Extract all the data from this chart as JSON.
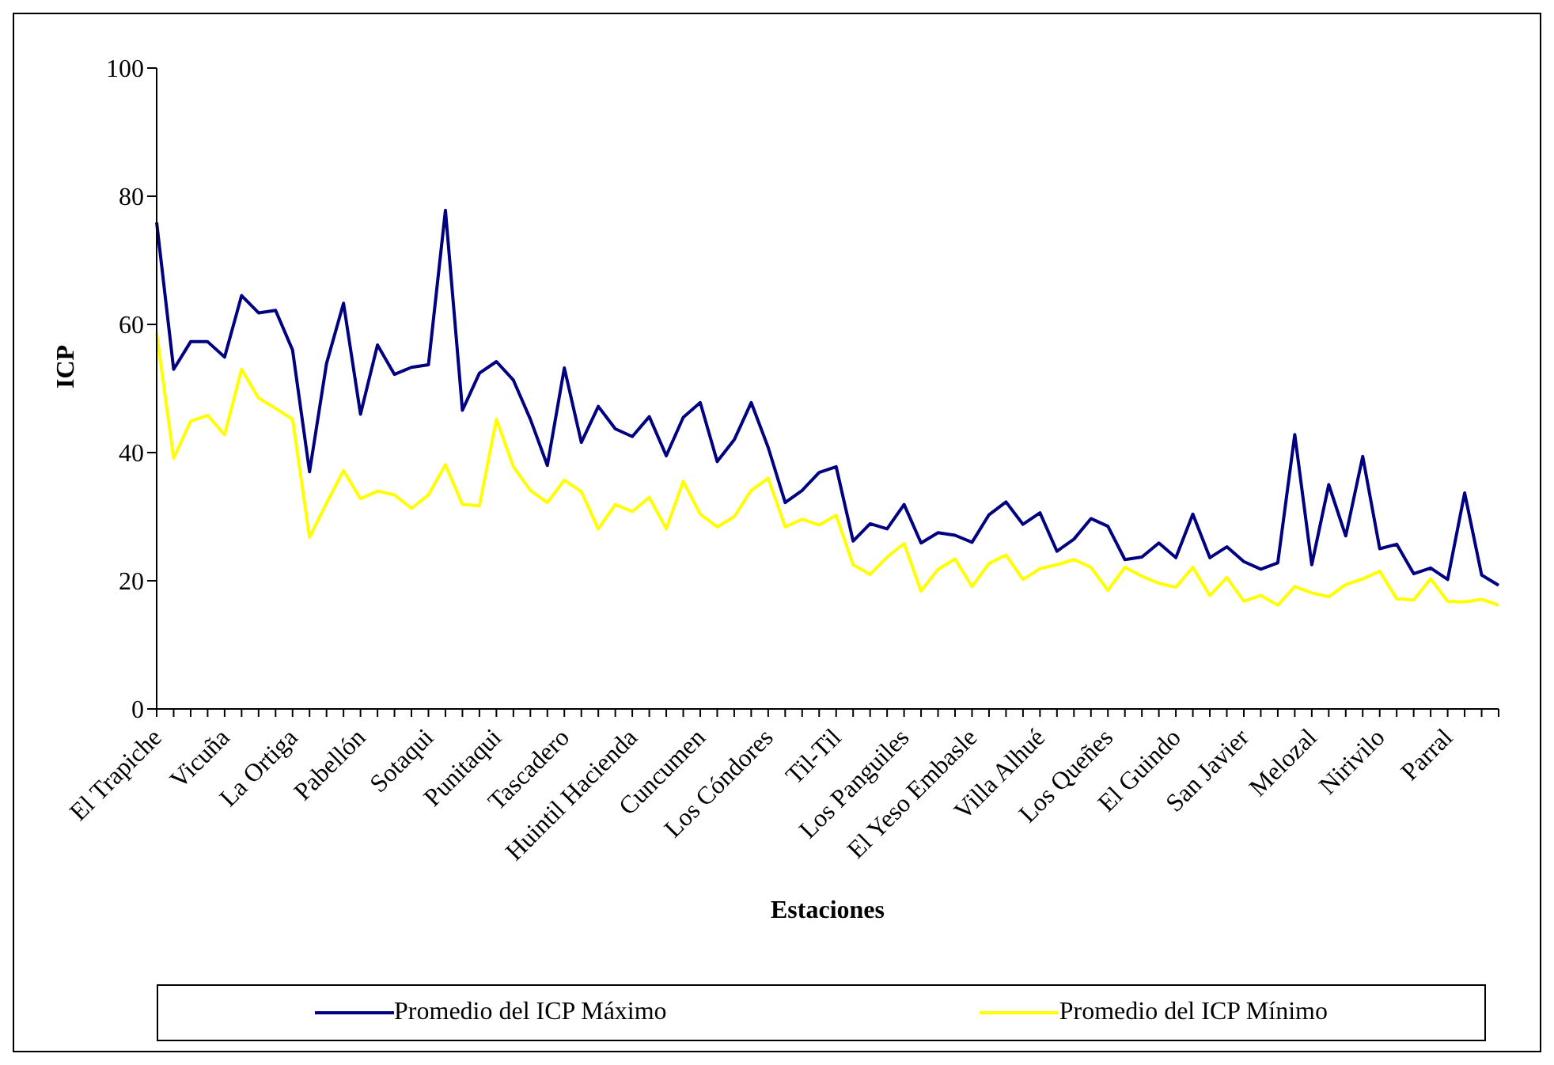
{
  "chart_data": {
    "type": "line",
    "xlabel": "Estaciones",
    "ylabel": "ICP",
    "categories": [
      "El Trapiche",
      null,
      null,
      null,
      "Vicuña",
      null,
      null,
      null,
      "La Ortiga",
      null,
      null,
      null,
      "Pabellón",
      null,
      null,
      null,
      "Sotaqui",
      null,
      null,
      null,
      "Punitaqui",
      null,
      null,
      null,
      "Tascadero",
      null,
      null,
      null,
      "Huintil Hacienda",
      null,
      null,
      null,
      "Cuncumen",
      null,
      null,
      null,
      "Los Cóndores",
      null,
      null,
      null,
      "Til-Til",
      null,
      null,
      null,
      "Los Panguiles",
      null,
      null,
      null,
      "El Yeso Embasle",
      null,
      null,
      null,
      "Villa Alhué",
      null,
      null,
      null,
      "Los Queñes",
      null,
      null,
      null,
      "El Guindo",
      null,
      null,
      null,
      "San Javier",
      null,
      null,
      null,
      "Melozal",
      null,
      null,
      null,
      "Nirivilo",
      null,
      null,
      null,
      "Parral",
      null,
      null,
      null
    ],
    "series": [
      {
        "name": "Promedio del ICP Máximo",
        "color": "#000080",
        "values": [
          75.9,
          53.0,
          57.3,
          57.3,
          54.9,
          64.5,
          61.8,
          62.2,
          56.0,
          37.0,
          53.9,
          63.3,
          46.0,
          56.8,
          52.2,
          53.3,
          53.7,
          77.8,
          46.6,
          52.4,
          54.2,
          51.3,
          45.2,
          38.0,
          53.2,
          41.6,
          47.2,
          43.7,
          42.5,
          45.6,
          39.5,
          45.5,
          47.8,
          38.6,
          42.0,
          47.8,
          40.8,
          32.2,
          34.1,
          36.9,
          37.8,
          26.2,
          28.9,
          28.1,
          31.9,
          25.9,
          27.5,
          27.1,
          26.0,
          30.3,
          32.3,
          28.8,
          30.6,
          24.6,
          26.5,
          29.7,
          28.5,
          23.3,
          23.7,
          25.9,
          23.6,
          30.4,
          23.6,
          25.3,
          23.0,
          21.8,
          22.8,
          42.8,
          22.5,
          35.0,
          27.0,
          39.4,
          25.0,
          25.7,
          21.1,
          22.0,
          20.2,
          33.7,
          20.9,
          19.3
        ]
      },
      {
        "name": "Promedio del ICP Mínimo",
        "color": "#ffff00",
        "values": [
          58.6,
          39.1,
          44.9,
          45.8,
          42.8,
          53.0,
          48.5,
          46.9,
          45.2,
          26.8,
          32.1,
          37.2,
          32.8,
          34.0,
          33.4,
          31.3,
          33.4,
          38.1,
          31.9,
          31.7,
          45.2,
          37.8,
          34.1,
          32.2,
          35.7,
          33.9,
          28.1,
          31.9,
          30.8,
          33.0,
          28.1,
          35.5,
          30.4,
          28.4,
          30.0,
          34.1,
          36.0,
          28.4,
          29.6,
          28.7,
          30.2,
          22.5,
          21.0,
          23.7,
          25.8,
          18.4,
          21.8,
          23.4,
          19.1,
          22.7,
          24.0,
          20.2,
          21.9,
          22.5,
          23.3,
          22.1,
          18.5,
          22.1,
          20.7,
          19.6,
          19.0,
          22.1,
          17.7,
          20.5,
          16.8,
          17.7,
          16.2,
          19.1,
          18.1,
          17.5,
          19.4,
          20.3,
          21.5,
          17.2,
          17.0,
          20.3,
          16.8,
          16.7,
          17.1,
          16.2
        ]
      }
    ],
    "ylim": [
      0,
      100
    ],
    "yticks": [
      0,
      20,
      40,
      60,
      80,
      100
    ],
    "grid": false,
    "legend": "bottom",
    "marker": "none",
    "line_style": "solid"
  }
}
